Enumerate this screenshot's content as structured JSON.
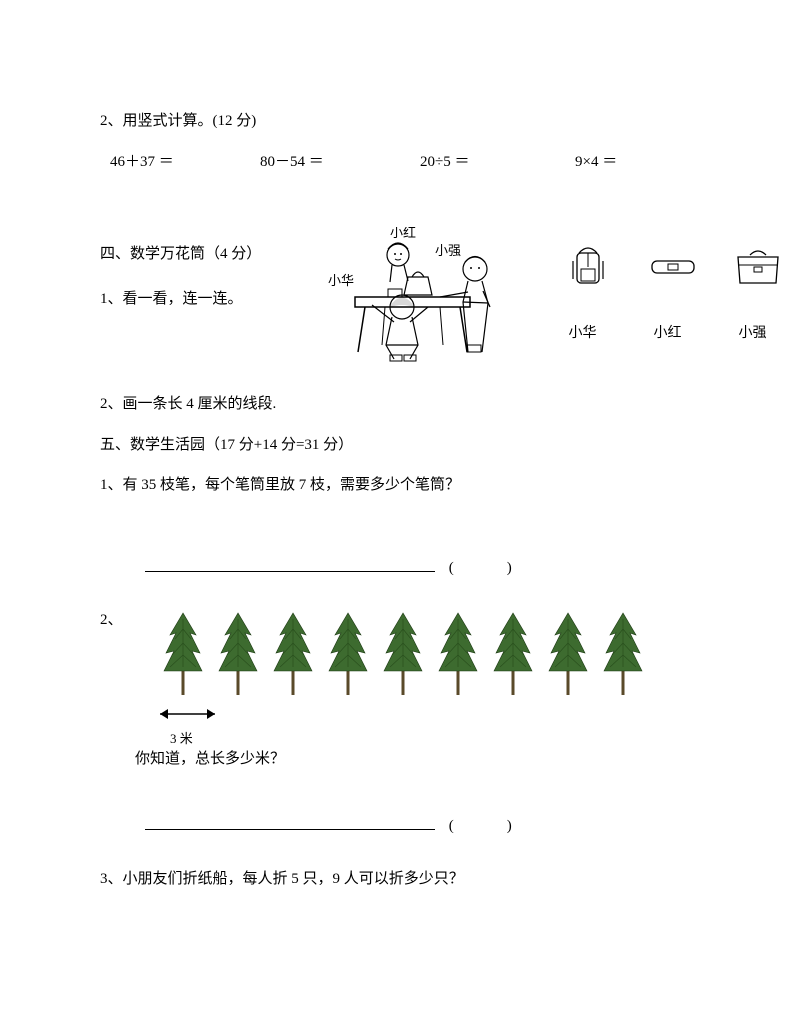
{
  "q2_header": "2、用竖式计算。(12 分)",
  "equations": {
    "e1": "46＋37 ＝",
    "e2": "80－54 ＝",
    "e3": "20÷5 ＝",
    "e4": "9×4 ＝"
  },
  "section4": {
    "title": "四、数学万花筒（4 分）",
    "q1": "1、看一看，连一连。",
    "people": {
      "hong": "小红",
      "qiang": "小强",
      "hua": "小华"
    },
    "bag_labels": {
      "a": "小华",
      "b": "小红",
      "c": "小强"
    }
  },
  "s4_q2": "2、画一条长 4 厘米的线段.",
  "section5": {
    "title": "五、数学生活园（17 分+14 分=31 分）",
    "q1": "1、有 35 枝笔，每个笔筒里放 7 枝，需要多少个笔筒？",
    "q2_num": "2、",
    "q2_dim": "3 米",
    "q2_text": "你知道，总长多少米？",
    "q3": "3、小朋友们折纸船，每人折 5 只，9 人可以折多少只？"
  },
  "blank_paren": "(　　　)",
  "colors": {
    "tree_green": "#3d6b2f",
    "trunk": "#5a4a2a",
    "line": "#000000"
  },
  "tree_count": 9
}
